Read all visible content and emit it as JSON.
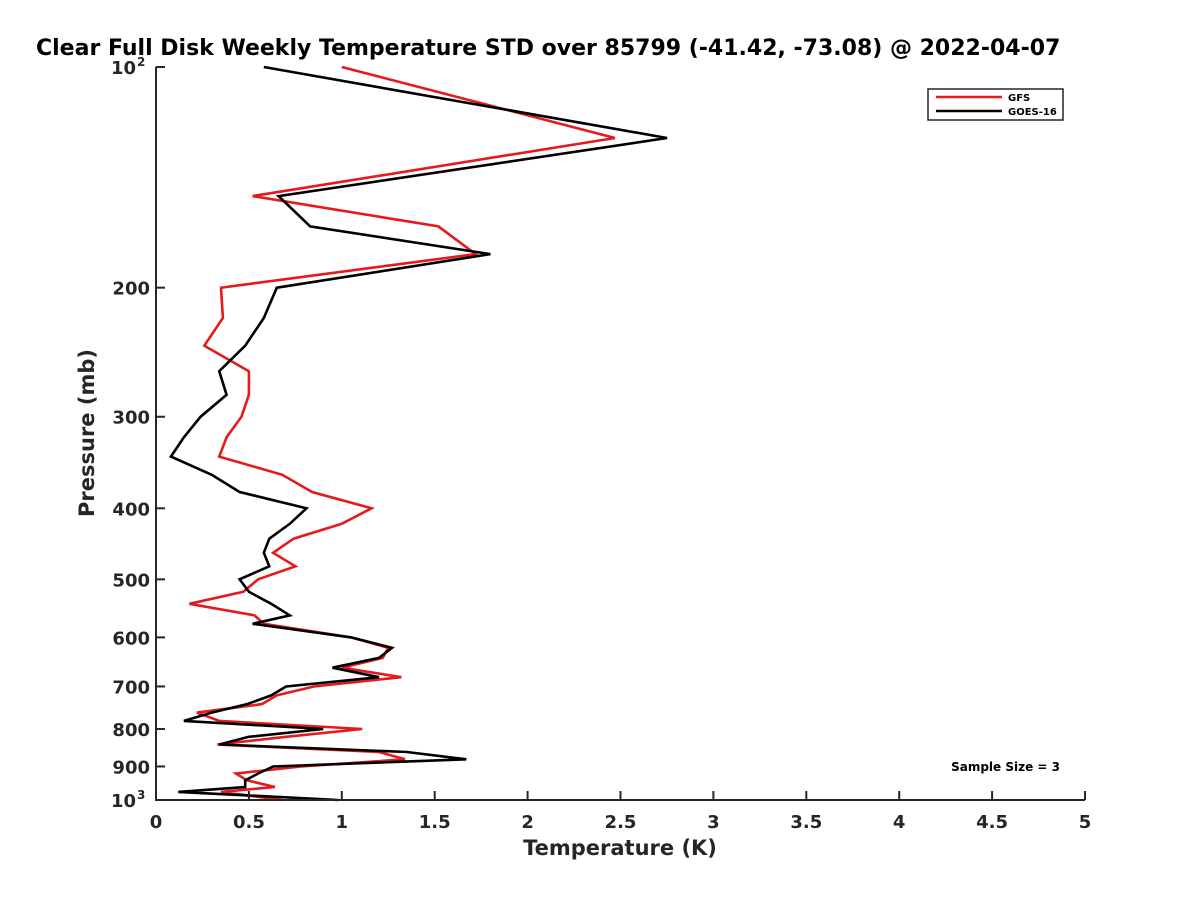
{
  "chart_data": {
    "type": "line",
    "title": "Clear Full Disk Weekly Temperature STD over 85799 (-41.42, -73.08) @ 2022-04-07",
    "xlabel": "Temperature (K)",
    "ylabel": "Pressure (mb)",
    "xlim": [
      0,
      5
    ],
    "ylim": [
      100,
      1000
    ],
    "y_scale": "log",
    "y_reversed": true,
    "x_ticks": [
      "0",
      "0.5",
      "1",
      "1.5",
      "2",
      "2.5",
      "3",
      "3.5",
      "4",
      "4.5",
      "5"
    ],
    "y_ticks": [
      {
        "value": 100,
        "base": "10",
        "exp": "2"
      },
      {
        "value": 200,
        "label": "200"
      },
      {
        "value": 300,
        "label": "300"
      },
      {
        "value": 400,
        "label": "400"
      },
      {
        "value": 500,
        "label": "500"
      },
      {
        "value": 600,
        "label": "600"
      },
      {
        "value": 700,
        "label": "700"
      },
      {
        "value": 800,
        "label": "800"
      },
      {
        "value": 900,
        "label": "900"
      },
      {
        "value": 1000,
        "base": "10",
        "exp": "3"
      }
    ],
    "grid": false,
    "legend_position": "top-right",
    "annotation": "Sample Size = 3",
    "series": [
      {
        "name": "GFS",
        "color": "#e41a1c",
        "points": [
          [
            1.0,
            100
          ],
          [
            2.47,
            125
          ],
          [
            0.52,
            150
          ],
          [
            1.52,
            165
          ],
          [
            1.72,
            180
          ],
          [
            0.35,
            200
          ],
          [
            0.36,
            220
          ],
          [
            0.26,
            240
          ],
          [
            0.5,
            260
          ],
          [
            0.5,
            280
          ],
          [
            0.46,
            300
          ],
          [
            0.38,
            320
          ],
          [
            0.34,
            340
          ],
          [
            0.68,
            360
          ],
          [
            0.84,
            380
          ],
          [
            1.16,
            400
          ],
          [
            1.0,
            420
          ],
          [
            0.74,
            440
          ],
          [
            0.63,
            460
          ],
          [
            0.75,
            480
          ],
          [
            0.55,
            500
          ],
          [
            0.47,
            520
          ],
          [
            0.18,
            540
          ],
          [
            0.53,
            560
          ],
          [
            0.58,
            575
          ],
          [
            1.05,
            600
          ],
          [
            1.25,
            620
          ],
          [
            1.22,
            640
          ],
          [
            1.0,
            660
          ],
          [
            1.32,
            680
          ],
          [
            0.85,
            700
          ],
          [
            0.65,
            720
          ],
          [
            0.57,
            740
          ],
          [
            0.22,
            760
          ],
          [
            0.34,
            780
          ],
          [
            1.11,
            800
          ],
          [
            0.7,
            820
          ],
          [
            0.33,
            840
          ],
          [
            1.2,
            860
          ],
          [
            1.34,
            880
          ],
          [
            0.78,
            900
          ],
          [
            0.43,
            920
          ],
          [
            0.49,
            940
          ],
          [
            0.64,
            960
          ],
          [
            0.35,
            975
          ],
          [
            0.68,
            1000
          ]
        ]
      },
      {
        "name": "GOES-16",
        "color": "#000000",
        "points": [
          [
            0.58,
            100
          ],
          [
            2.75,
            125
          ],
          [
            0.66,
            150
          ],
          [
            0.83,
            165
          ],
          [
            1.8,
            180
          ],
          [
            0.65,
            200
          ],
          [
            0.58,
            220
          ],
          [
            0.48,
            240
          ],
          [
            0.34,
            260
          ],
          [
            0.38,
            280
          ],
          [
            0.24,
            300
          ],
          [
            0.15,
            320
          ],
          [
            0.08,
            340
          ],
          [
            0.3,
            360
          ],
          [
            0.45,
            380
          ],
          [
            0.81,
            400
          ],
          [
            0.72,
            420
          ],
          [
            0.61,
            440
          ],
          [
            0.58,
            460
          ],
          [
            0.61,
            480
          ],
          [
            0.45,
            500
          ],
          [
            0.5,
            520
          ],
          [
            0.62,
            540
          ],
          [
            0.72,
            560
          ],
          [
            0.52,
            575
          ],
          [
            1.05,
            600
          ],
          [
            1.27,
            620
          ],
          [
            1.2,
            640
          ],
          [
            0.95,
            660
          ],
          [
            1.2,
            680
          ],
          [
            0.7,
            700
          ],
          [
            0.62,
            720
          ],
          [
            0.49,
            740
          ],
          [
            0.3,
            760
          ],
          [
            0.15,
            780
          ],
          [
            0.9,
            800
          ],
          [
            0.5,
            820
          ],
          [
            0.34,
            840
          ],
          [
            1.35,
            860
          ],
          [
            1.67,
            880
          ],
          [
            0.63,
            900
          ],
          [
            0.55,
            920
          ],
          [
            0.48,
            940
          ],
          [
            0.48,
            960
          ],
          [
            0.12,
            975
          ],
          [
            0.98,
            1000
          ]
        ]
      }
    ]
  }
}
